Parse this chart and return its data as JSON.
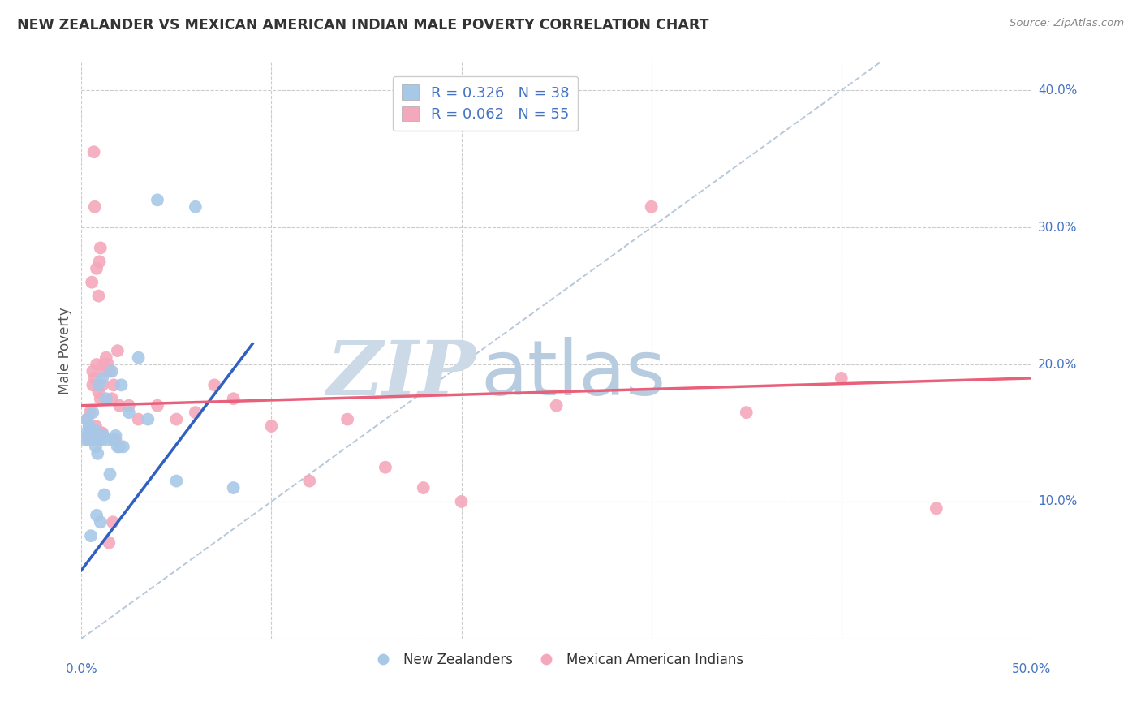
{
  "title": "NEW ZEALANDER VS MEXICAN AMERICAN INDIAN MALE POVERTY CORRELATION CHART",
  "source": "Source: ZipAtlas.com",
  "ylabel": "Male Poverty",
  "r_nz": 0.326,
  "n_nz": 38,
  "r_mx": 0.062,
  "n_mx": 55,
  "nz_color": "#a8c8e8",
  "mx_color": "#f4a8bc",
  "nz_line_color": "#3060c0",
  "mx_line_color": "#e8607a",
  "diagonal_color": "#b8c8d8",
  "watermark_zip": "ZIP",
  "watermark_atlas": "atlas",
  "watermark_color_zip": "#c8d8e8",
  "watermark_color_atlas": "#b8cce0",
  "legend_label_nz": "New Zealanders",
  "legend_label_mx": "Mexican American Indians",
  "nz_x": [
    0.5,
    0.8,
    1.0,
    1.2,
    1.5,
    2.0,
    2.5,
    3.0,
    3.5,
    4.0,
    5.0,
    6.0,
    8.0,
    0.3,
    0.4,
    0.6,
    0.7,
    0.9,
    1.1,
    1.3,
    1.4,
    1.6,
    1.7,
    1.8,
    1.9,
    2.1,
    2.2,
    0.2,
    0.25,
    0.35,
    0.45,
    0.55,
    0.65,
    0.75,
    0.85,
    0.95,
    1.05,
    1.15
  ],
  "nz_y": [
    7.5,
    9.0,
    8.5,
    10.5,
    12.0,
    14.0,
    16.5,
    20.5,
    16.0,
    32.0,
    11.5,
    31.5,
    11.0,
    16.0,
    15.5,
    16.5,
    15.2,
    18.5,
    19.0,
    17.5,
    14.5,
    19.5,
    14.5,
    14.8,
    14.0,
    18.5,
    14.0,
    14.5,
    15.0,
    14.8,
    14.5,
    15.0,
    14.5,
    14.0,
    13.5,
    14.5,
    14.5,
    14.8
  ],
  "mx_x": [
    0.3,
    0.4,
    0.5,
    0.5,
    0.6,
    0.6,
    0.7,
    0.7,
    0.8,
    0.8,
    0.9,
    0.9,
    1.0,
    1.0,
    1.1,
    1.1,
    1.2,
    1.2,
    1.3,
    1.4,
    1.5,
    1.6,
    1.7,
    1.8,
    1.9,
    2.0,
    2.5,
    3.0,
    4.0,
    5.0,
    6.0,
    7.0,
    8.0,
    10.0,
    12.0,
    14.0,
    16.0,
    18.0,
    20.0,
    25.0,
    30.0,
    35.0,
    40.0,
    45.0,
    0.35,
    0.45,
    0.55,
    0.65,
    0.75,
    0.85,
    0.95,
    1.05,
    1.25,
    1.45,
    1.65
  ],
  "mx_y": [
    16.0,
    15.5,
    15.0,
    14.5,
    18.5,
    19.5,
    19.0,
    31.5,
    20.0,
    27.0,
    18.0,
    25.0,
    17.5,
    28.5,
    18.5,
    15.0,
    20.0,
    20.0,
    20.5,
    20.0,
    19.5,
    17.5,
    18.5,
    14.5,
    21.0,
    17.0,
    17.0,
    16.0,
    17.0,
    16.0,
    16.5,
    18.5,
    17.5,
    15.5,
    11.5,
    16.0,
    12.5,
    11.0,
    10.0,
    17.0,
    31.5,
    16.5,
    19.0,
    9.5,
    14.5,
    16.5,
    26.0,
    35.5,
    15.5,
    14.5,
    27.5,
    15.0,
    19.5,
    7.0,
    8.5
  ],
  "xmin": 0,
  "xmax": 50,
  "ymin": 0,
  "ymax": 42,
  "xtick_vals": [
    0,
    10,
    20,
    30,
    40,
    50
  ],
  "ytick_vals": [
    0,
    10,
    20,
    30,
    40
  ],
  "right_ytick_labels": [
    "10.0%",
    "20.0%",
    "30.0%",
    "40.0%"
  ],
  "right_ytick_vals": [
    10,
    20,
    30,
    40
  ],
  "nz_trend_x": [
    0,
    9
  ],
  "mx_trend_x": [
    0,
    50
  ]
}
